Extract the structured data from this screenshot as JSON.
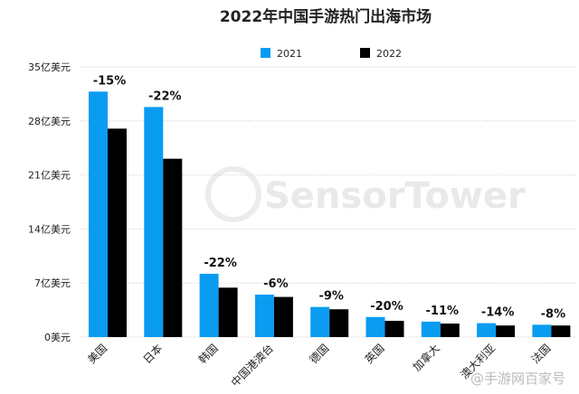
{
  "chart_data": {
    "type": "bar",
    "title": "2022年中国手游热门出海市场",
    "categories": [
      "美国",
      "日本",
      "韩国",
      "中国港澳台",
      "德国",
      "英国",
      "加拿大",
      "澳大利亚",
      "法国"
    ],
    "series": [
      {
        "name": "2021",
        "color": "#0a9cf0",
        "values": [
          31.8,
          29.8,
          8.2,
          5.5,
          3.9,
          2.6,
          2.0,
          1.8,
          1.6
        ]
      },
      {
        "name": "2022",
        "color": "#000000",
        "values": [
          27.0,
          23.1,
          6.4,
          5.2,
          3.6,
          2.1,
          1.75,
          1.5,
          1.5
        ]
      }
    ],
    "change_labels": [
      "-15%",
      "-22%",
      "-22%",
      "-6%",
      "-9%",
      "-20%",
      "-11%",
      "-14%",
      "-8%"
    ],
    "ylim": [
      0,
      35
    ],
    "yticks": [
      0,
      7,
      14,
      21,
      28,
      35
    ],
    "ytick_labels": [
      "0美元",
      "7亿美元",
      "14亿美元",
      "21亿美元",
      "28亿美元",
      "35亿美元"
    ],
    "grid": true,
    "legend_position": "top",
    "xlabel": "",
    "ylabel": ""
  },
  "watermarks": {
    "brand": "SensorTower",
    "source": "@手游网百家号"
  }
}
